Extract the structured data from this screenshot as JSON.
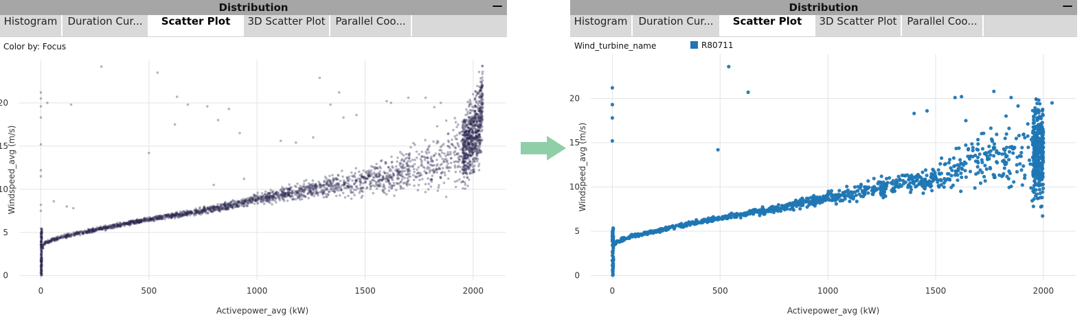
{
  "left_panel": {
    "title": "Distribution",
    "minimize_label": "—",
    "tabs": [
      {
        "label": "Histogram",
        "active": false
      },
      {
        "label": "Duration Cur...",
        "active": false
      },
      {
        "label": "Scatter Plot",
        "active": true
      },
      {
        "label": "3D Scatter Plot",
        "active": false
      },
      {
        "label": "Parallel Coo...",
        "active": false
      }
    ],
    "color_by_label": "Color by: Focus"
  },
  "right_panel": {
    "title": "Distribution",
    "minimize_label": "—",
    "tabs": [
      {
        "label": "Histogram",
        "active": false
      },
      {
        "label": "Duration Cur...",
        "active": false
      },
      {
        "label": "Scatter Plot",
        "active": true
      },
      {
        "label": "3D Scatter Plot",
        "active": false
      },
      {
        "label": "Parallel Coo...",
        "active": false
      }
    ],
    "legend_title": "Wind_turbine_name",
    "legend_entry": "R80711"
  },
  "colors": {
    "left_points": "#2a2850",
    "right_points": "#1f77b4",
    "arrow": "#8fcfa8"
  },
  "chart_data": [
    {
      "type": "scatter",
      "xlabel": "Activepower_avg (kW)",
      "ylabel": "Windspeed_avg (m/s)",
      "xticks": [
        0,
        500,
        1000,
        1500,
        2000
      ],
      "yticks": [
        0,
        5,
        10,
        15,
        20
      ],
      "xlim": [
        -100,
        2150
      ],
      "ylim": [
        -0.5,
        25
      ],
      "grid": true,
      "point_style": "small translucent",
      "trend_points": [
        [
          0,
          0
        ],
        [
          0,
          3
        ],
        [
          20,
          3.8
        ],
        [
          100,
          4.5
        ],
        [
          250,
          5.3
        ],
        [
          500,
          6.5
        ],
        [
          750,
          7.5
        ],
        [
          1000,
          8.8
        ],
        [
          1250,
          10.0
        ],
        [
          1500,
          11.0
        ],
        [
          1750,
          12.5
        ],
        [
          1950,
          14.3
        ],
        [
          2030,
          17.5
        ],
        [
          2045,
          21.5
        ]
      ],
      "outliers": [
        [
          0,
          21.2
        ],
        [
          0,
          20.5
        ],
        [
          0,
          19.6
        ],
        [
          0,
          18.3
        ],
        [
          0,
          15.2
        ],
        [
          0,
          12.2
        ],
        [
          0,
          11.5
        ],
        [
          0,
          8.2
        ],
        [
          0,
          7.5
        ],
        [
          30,
          20.0
        ],
        [
          140,
          19.8
        ],
        [
          280,
          24.2
        ],
        [
          540,
          23.5
        ],
        [
          620,
          17.5
        ],
        [
          630,
          20.7
        ],
        [
          680,
          19.8
        ],
        [
          770,
          19.6
        ],
        [
          800,
          10.5
        ],
        [
          820,
          18.0
        ],
        [
          870,
          19.3
        ],
        [
          920,
          16.5
        ],
        [
          940,
          11.2
        ],
        [
          500,
          14.2
        ],
        [
          1110,
          15.6
        ],
        [
          1180,
          15.4
        ],
        [
          1260,
          16.0
        ],
        [
          1290,
          22.9
        ],
        [
          1340,
          19.8
        ],
        [
          1380,
          21.2
        ],
        [
          1400,
          18.3
        ],
        [
          1460,
          18.6
        ],
        [
          1600,
          20.2
        ],
        [
          1620,
          20.0
        ],
        [
          1700,
          20.6
        ],
        [
          1780,
          20.6
        ],
        [
          1820,
          19.5
        ],
        [
          1850,
          20.0
        ],
        [
          60,
          8.6
        ],
        [
          150,
          7.8
        ],
        [
          120,
          8.0
        ]
      ],
      "points_count": 3000
    },
    {
      "type": "scatter",
      "xlabel": "Activepower_avg (kW)",
      "ylabel": "Windspeed_avg (m/s)",
      "xticks": [
        0,
        500,
        1000,
        1500,
        2000
      ],
      "yticks": [
        0,
        5,
        10,
        15,
        20
      ],
      "xlim": [
        -100,
        2150
      ],
      "ylim": [
        -0.5,
        25
      ],
      "grid": true,
      "legend": "top-left",
      "series": [
        {
          "name": "R80711"
        }
      ],
      "trend_points": [
        [
          0,
          0
        ],
        [
          0,
          3
        ],
        [
          20,
          3.8
        ],
        [
          100,
          4.5
        ],
        [
          250,
          5.3
        ],
        [
          500,
          6.5
        ],
        [
          750,
          7.5
        ],
        [
          1000,
          8.8
        ],
        [
          1250,
          10.0
        ],
        [
          1500,
          11.0
        ],
        [
          1600,
          12.0
        ],
        [
          1750,
          13.5
        ],
        [
          2000,
          14.0
        ]
      ],
      "outliers": [
        [
          0,
          21.2
        ],
        [
          0,
          19.3
        ],
        [
          0,
          17.8
        ],
        [
          0,
          15.2
        ],
        [
          540,
          23.6
        ],
        [
          630,
          20.7
        ],
        [
          490,
          14.2
        ],
        [
          1400,
          18.3
        ],
        [
          1460,
          18.6
        ],
        [
          1590,
          20.1
        ],
        [
          1620,
          20.2
        ],
        [
          1770,
          20.8
        ],
        [
          1850,
          20.1
        ],
        [
          2040,
          19.5
        ],
        [
          1640,
          17.5
        ]
      ],
      "points_count": 1300
    }
  ]
}
